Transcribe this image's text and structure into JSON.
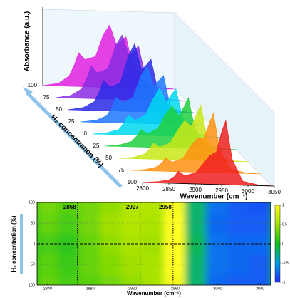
{
  "chart_data": [
    {
      "type": "waterfall",
      "y_label": "Absorbance (a.u.)",
      "z_label": "H₂ concentration (%)",
      "x_label": "Wavenumber (cm⁻¹)",
      "x": [
        2800,
        2830,
        2850,
        2860,
        2868,
        2880,
        2900,
        2915,
        2927,
        2940,
        2950,
        2958,
        2970,
        2990,
        3020,
        3050
      ],
      "xlim": [
        2800,
        3050
      ],
      "xticks": [
        2800,
        2850,
        2900,
        2950,
        3000,
        3050
      ],
      "ylim": [
        0,
        1
      ],
      "categories": [
        "100",
        "75",
        "50",
        "25",
        "0",
        "25",
        "50",
        "75",
        "100"
      ],
      "series": [
        {
          "color": "#e020e0",
          "values": [
            0,
            0.04,
            0.15,
            0.32,
            0.5,
            0.4,
            0.45,
            0.78,
            0.92,
            0.62,
            0.7,
            0.75,
            0.35,
            0.08,
            0.02,
            0
          ]
        },
        {
          "color": "#8a2be2",
          "values": [
            0,
            0.04,
            0.14,
            0.3,
            0.48,
            0.38,
            0.45,
            0.8,
            0.95,
            0.65,
            0.72,
            0.8,
            0.38,
            0.08,
            0.02,
            0
          ]
        },
        {
          "color": "#2a2ae6",
          "values": [
            0,
            0.04,
            0.13,
            0.28,
            0.45,
            0.35,
            0.42,
            0.82,
            1.0,
            0.62,
            0.7,
            0.78,
            0.36,
            0.07,
            0.02,
            0
          ]
        },
        {
          "color": "#1e78ff",
          "values": [
            0,
            0.03,
            0.1,
            0.22,
            0.38,
            0.3,
            0.38,
            0.7,
            0.85,
            0.55,
            0.65,
            0.72,
            0.3,
            0.06,
            0.01,
            0
          ]
        },
        {
          "color": "#00d8f0",
          "values": [
            0,
            0.03,
            0.08,
            0.18,
            0.3,
            0.22,
            0.3,
            0.55,
            0.7,
            0.5,
            0.62,
            0.7,
            0.3,
            0.06,
            0.01,
            0
          ]
        },
        {
          "color": "#20d040",
          "values": [
            0,
            0.03,
            0.08,
            0.16,
            0.26,
            0.2,
            0.28,
            0.5,
            0.62,
            0.48,
            0.62,
            0.75,
            0.3,
            0.05,
            0.01,
            0
          ]
        },
        {
          "color": "#c8e818",
          "values": [
            0,
            0.02,
            0.07,
            0.14,
            0.24,
            0.18,
            0.25,
            0.45,
            0.58,
            0.5,
            0.68,
            0.82,
            0.32,
            0.05,
            0.01,
            0
          ]
        },
        {
          "color": "#ff9010",
          "values": [
            0,
            0.02,
            0.06,
            0.12,
            0.2,
            0.14,
            0.2,
            0.38,
            0.5,
            0.5,
            0.72,
            0.88,
            0.35,
            0.06,
            0.01,
            0
          ]
        },
        {
          "color": "#f02020",
          "values": [
            0,
            0.02,
            0.05,
            0.1,
            0.18,
            0.12,
            0.16,
            0.3,
            0.42,
            0.48,
            0.78,
            0.95,
            0.38,
            0.06,
            0.01,
            0
          ]
        }
      ]
    },
    {
      "type": "heatmap",
      "x_label": "Wavenumber (cm⁻¹)",
      "y_label": "H₂ concentration (%)",
      "x": [
        2840,
        2860,
        2880,
        2900,
        2920,
        2940,
        2960,
        2980,
        3000,
        3020,
        3040
      ],
      "y": [
        -100,
        -50,
        0,
        50,
        100
      ],
      "z": [
        [
          0.3,
          0.2,
          0.25,
          0.35,
          0.45,
          0.55,
          0.95,
          -0.2,
          -0.75,
          -0.8,
          -0.8
        ],
        [
          0.25,
          0.15,
          0.3,
          0.4,
          0.5,
          0.55,
          1,
          -0.2,
          -0.7,
          -0.75,
          -0.8
        ],
        [
          0.2,
          0.1,
          0.3,
          0.45,
          0.55,
          0.5,
          1,
          -0.15,
          -0.7,
          -0.75,
          -0.75
        ],
        [
          0.3,
          0.2,
          0.35,
          0.5,
          0.6,
          0.55,
          1,
          -0.2,
          -0.75,
          -0.8,
          -0.8
        ],
        [
          0.35,
          0.25,
          0.35,
          0.45,
          0.6,
          0.6,
          0.95,
          -0.2,
          -0.7,
          -0.8,
          -0.85
        ]
      ],
      "xlim": [
        2830,
        3050
      ],
      "xticks": [
        2840,
        2880,
        2920,
        2960,
        3000,
        3040
      ],
      "ylim": [
        -100,
        100
      ],
      "yticks": [
        {
          "value": 100,
          "label": "100"
        },
        {
          "value": 50,
          "label": "50"
        },
        0,
        {
          "value": -50,
          "label": "50"
        },
        {
          "value": -100,
          "label": "100"
        }
      ],
      "grid": true,
      "zlim": [
        -1,
        1
      ],
      "zticks": [
        1,
        0.5,
        0,
        -0.5,
        -1
      ],
      "vlines": [
        2868,
        2927,
        2958
      ]
    }
  ]
}
